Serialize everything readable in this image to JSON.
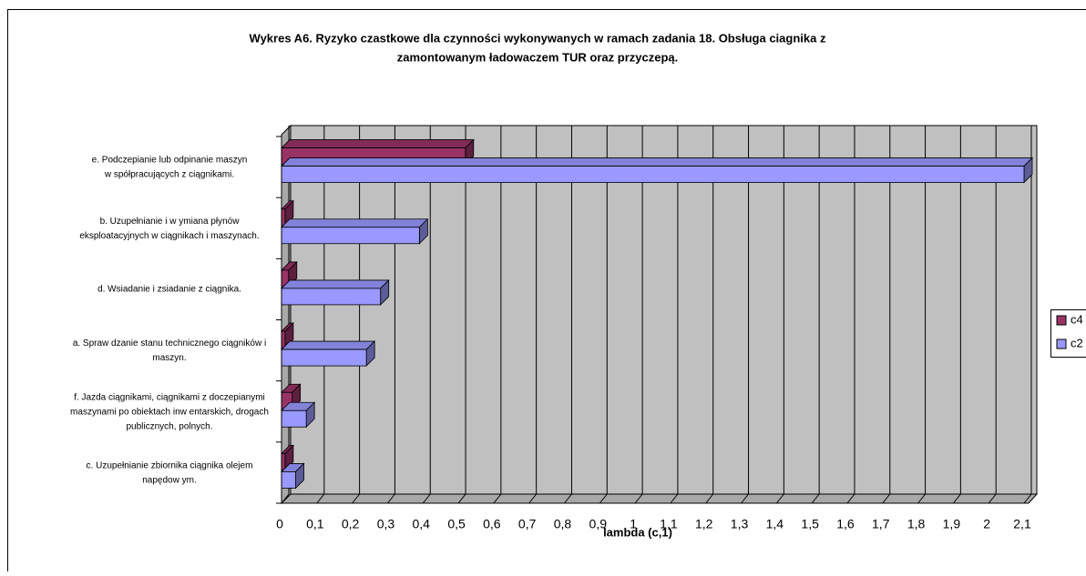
{
  "chart_data": {
    "type": "bar3d-horizontal",
    "title": "Wykres A6. Ryzyko czastkowe dla czynności wykonywanych w ramach zadania 18. Obsługa ciagnika z\nzamontowanym ładowaczem TUR oraz przyczepą.",
    "x_label": "lambda (c,1)",
    "categories": [
      "e. Podczepianie lub odpinanie maszyn\nw spółpracujących z ciągnikami.",
      "b. Uzupełnianie i w ymiana płynów\neksploatacyjnych w  ciągnikach i maszynach.",
      "d. Wsiadanie i zsiadanie z ciągnika.",
      "a. Spraw dzanie stanu technicznego ciągników  i\nmaszyn.",
      "f. Jazda ciągnikami, ciągnikami z doczepianymi\nmaszynami po obiektach inw entarskich, drogach\npublicznych, polnych.",
      "c. Uzupełnianie zbiornika ciągnika  olejem\nnapędow ym."
    ],
    "series": [
      {
        "name": "c4",
        "color": "#993366",
        "values": [
          0.52,
          0.01,
          0.02,
          0.01,
          0.03,
          0.01
        ]
      },
      {
        "name": "c2",
        "color": "#9999ff",
        "values": [
          2.1,
          0.39,
          0.28,
          0.24,
          0.07,
          0.04
        ]
      }
    ],
    "xlim": [
      0,
      2.1
    ],
    "xticks": [
      0,
      {
        "value": 0.1,
        "label": "0,1"
      },
      {
        "value": 0.2,
        "label": "0,2"
      },
      {
        "value": 0.3,
        "label": "0,3"
      },
      {
        "value": 0.4,
        "label": "0,4"
      },
      {
        "value": 0.5,
        "label": "0,5"
      },
      {
        "value": 0.6,
        "label": "0,6"
      },
      {
        "value": 0.7,
        "label": "0,7"
      },
      {
        "value": 0.8,
        "label": "0,8"
      },
      {
        "value": 0.9,
        "label": "0,9"
      },
      1,
      {
        "value": 1.1,
        "label": "1,1"
      },
      {
        "value": 1.2,
        "label": "1,2"
      },
      {
        "value": 1.3,
        "label": "1,3"
      },
      {
        "value": 1.4,
        "label": "1,4"
      },
      {
        "value": 1.5,
        "label": "1,5"
      },
      {
        "value": 1.6,
        "label": "1,6"
      },
      {
        "value": 1.7,
        "label": "1,7"
      },
      {
        "value": 1.8,
        "label": "1,8"
      },
      {
        "value": 1.9,
        "label": "1,9"
      },
      2,
      {
        "value": 2.1,
        "label": "2,1"
      }
    ],
    "grid": true,
    "legend": "right"
  }
}
